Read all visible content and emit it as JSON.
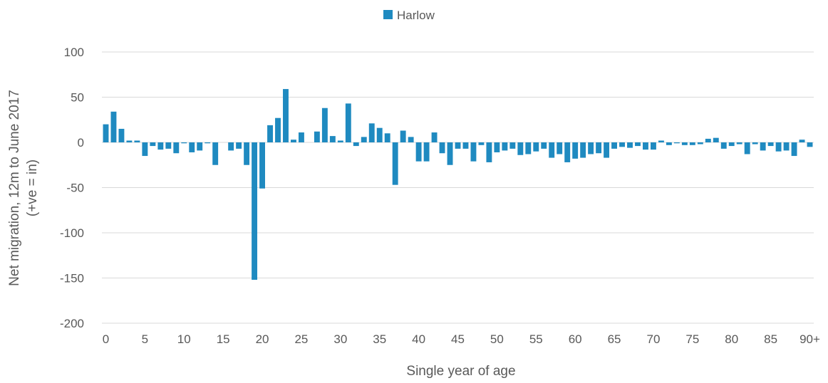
{
  "chart_data": {
    "type": "bar",
    "title": "",
    "xlabel": "Single year of age",
    "ylabel_line1": "Net migration, 12m to June 2017",
    "ylabel_line2": "(+ve = in)",
    "ylim": [
      -200,
      100
    ],
    "yticks": [
      100,
      50,
      0,
      -50,
      -100,
      -150,
      -200
    ],
    "xtick_labels": [
      "0",
      "5",
      "10",
      "15",
      "20",
      "25",
      "30",
      "35",
      "40",
      "45",
      "50",
      "55",
      "60",
      "65",
      "70",
      "75",
      "80",
      "85",
      "90+"
    ],
    "grid": true,
    "legend_position": "top",
    "series": [
      {
        "name": "Harlow",
        "color": "#1f8ac0",
        "values": [
          20,
          34,
          15,
          2,
          2,
          -15,
          -4,
          -8,
          -7,
          -12,
          -1,
          -11,
          -9,
          -1,
          -25,
          0,
          -9,
          -7,
          -25,
          -152,
          -51,
          19,
          27,
          59,
          3,
          11,
          0,
          12,
          38,
          7,
          2,
          43,
          -4,
          6,
          21,
          16,
          10,
          -47,
          13,
          6,
          -21,
          -21,
          11,
          -12,
          -25,
          -7,
          -7,
          -21,
          -3,
          -22,
          -11,
          -9,
          -7,
          -14,
          -13,
          -10,
          -7,
          -17,
          -13,
          -22,
          -18,
          -17,
          -13,
          -12,
          -17,
          -7,
          -5,
          -6,
          -4,
          -8,
          -8,
          2,
          -3,
          -1,
          -3,
          -3,
          -2,
          4,
          5,
          -7,
          -4,
          -2,
          -13,
          -2,
          -9,
          -4,
          -10,
          -9,
          -15,
          3,
          -5
        ]
      }
    ]
  }
}
